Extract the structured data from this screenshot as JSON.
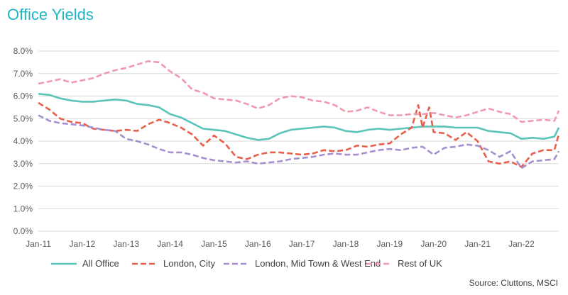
{
  "chart_data": {
    "type": "line",
    "title": "Office Yields",
    "source": "Source: Cluttons, MSCI",
    "xlabel": "",
    "ylabel": "",
    "x_tick_labels": [
      "Jan-11",
      "Jan-12",
      "Jan-13",
      "Jan-14",
      "Jan-15",
      "Jan-16",
      "Jan-17",
      "Jan-18",
      "Jan-19",
      "Jan-20",
      "Jan-21",
      "Jan-22"
    ],
    "y_tick_labels": [
      "0.0%",
      "1.0%",
      "2.0%",
      "3.0%",
      "4.0%",
      "5.0%",
      "6.0%",
      "7.0%",
      "8.0%"
    ],
    "ylim": [
      0,
      8
    ],
    "grid": "horizontal",
    "legend_position": "bottom",
    "series": [
      {
        "name": "All Office",
        "color": "#5bc4b8",
        "dash": "solid",
        "x": [
          2011.0,
          2011.25,
          2011.5,
          2011.75,
          2012.0,
          2012.25,
          2012.5,
          2012.75,
          2013.0,
          2013.25,
          2013.5,
          2013.75,
          2014.0,
          2014.25,
          2014.5,
          2014.75,
          2015.0,
          2015.25,
          2015.5,
          2015.75,
          2016.0,
          2016.25,
          2016.5,
          2016.75,
          2017.0,
          2017.25,
          2017.5,
          2017.75,
          2018.0,
          2018.25,
          2018.5,
          2018.75,
          2019.0,
          2019.25,
          2019.5,
          2019.75,
          2020.0,
          2020.25,
          2020.5,
          2020.75,
          2021.0,
          2021.25,
          2021.5,
          2021.75,
          2022.0,
          2022.25,
          2022.5,
          2022.75,
          2022.85
        ],
        "values": [
          6.1,
          6.05,
          5.9,
          5.8,
          5.75,
          5.75,
          5.8,
          5.85,
          5.8,
          5.65,
          5.6,
          5.5,
          5.2,
          5.05,
          4.8,
          4.55,
          4.5,
          4.45,
          4.3,
          4.15,
          4.05,
          4.1,
          4.35,
          4.5,
          4.55,
          4.6,
          4.65,
          4.6,
          4.45,
          4.4,
          4.5,
          4.55,
          4.5,
          4.55,
          4.6,
          4.65,
          4.65,
          4.65,
          4.6,
          4.6,
          4.6,
          4.45,
          4.4,
          4.35,
          4.1,
          4.15,
          4.1,
          4.2,
          4.6
        ]
      },
      {
        "name": "London, City",
        "color": "#e8604c",
        "dash": "long",
        "x": [
          2011.0,
          2011.25,
          2011.5,
          2011.75,
          2012.0,
          2012.25,
          2012.5,
          2012.75,
          2013.0,
          2013.25,
          2013.5,
          2013.75,
          2014.0,
          2014.25,
          2014.5,
          2014.75,
          2015.0,
          2015.25,
          2015.5,
          2015.75,
          2016.0,
          2016.25,
          2016.5,
          2016.75,
          2017.0,
          2017.25,
          2017.5,
          2017.75,
          2018.0,
          2018.25,
          2018.5,
          2018.75,
          2019.0,
          2019.25,
          2019.5,
          2019.65,
          2019.75,
          2019.9,
          2020.0,
          2020.25,
          2020.5,
          2020.75,
          2021.0,
          2021.25,
          2021.5,
          2021.75,
          2022.0,
          2022.25,
          2022.5,
          2022.75,
          2022.85
        ],
        "values": [
          5.7,
          5.4,
          5.0,
          4.85,
          4.8,
          4.55,
          4.5,
          4.45,
          4.5,
          4.45,
          4.75,
          4.95,
          4.8,
          4.6,
          4.3,
          3.8,
          4.25,
          3.9,
          3.3,
          3.2,
          3.4,
          3.5,
          3.5,
          3.45,
          3.4,
          3.45,
          3.6,
          3.55,
          3.6,
          3.8,
          3.75,
          3.85,
          3.9,
          4.3,
          4.6,
          5.6,
          4.6,
          5.5,
          4.4,
          4.35,
          4.05,
          4.4,
          4.0,
          3.1,
          3.0,
          3.1,
          2.85,
          3.45,
          3.6,
          3.6,
          4.3
        ]
      },
      {
        "name": "London, Mid Town & West End",
        "color": "#a58fce",
        "dash": "long",
        "x": [
          2011.0,
          2011.25,
          2011.5,
          2011.75,
          2012.0,
          2012.25,
          2012.5,
          2012.75,
          2013.0,
          2013.25,
          2013.5,
          2013.75,
          2014.0,
          2014.25,
          2014.5,
          2014.75,
          2015.0,
          2015.25,
          2015.5,
          2015.75,
          2016.0,
          2016.25,
          2016.5,
          2016.75,
          2017.0,
          2017.25,
          2017.5,
          2017.75,
          2018.0,
          2018.25,
          2018.5,
          2018.75,
          2019.0,
          2019.25,
          2019.5,
          2019.75,
          2020.0,
          2020.25,
          2020.5,
          2020.75,
          2021.0,
          2021.25,
          2021.5,
          2021.75,
          2022.0,
          2022.25,
          2022.5,
          2022.75,
          2022.85
        ],
        "values": [
          5.15,
          4.9,
          4.8,
          4.75,
          4.7,
          4.6,
          4.5,
          4.45,
          4.1,
          4.0,
          3.85,
          3.65,
          3.5,
          3.5,
          3.4,
          3.25,
          3.15,
          3.1,
          3.05,
          3.1,
          3.0,
          3.05,
          3.1,
          3.2,
          3.25,
          3.3,
          3.4,
          3.45,
          3.4,
          3.4,
          3.5,
          3.6,
          3.65,
          3.6,
          3.7,
          3.75,
          3.4,
          3.7,
          3.75,
          3.85,
          3.8,
          3.6,
          3.3,
          3.55,
          2.8,
          3.1,
          3.15,
          3.2,
          3.55
        ]
      },
      {
        "name": "Rest of UK",
        "color": "#ef9aaf",
        "dash": "long",
        "x": [
          2011.0,
          2011.25,
          2011.5,
          2011.75,
          2012.0,
          2012.25,
          2012.5,
          2012.75,
          2013.0,
          2013.25,
          2013.5,
          2013.75,
          2014.0,
          2014.25,
          2014.5,
          2014.75,
          2015.0,
          2015.25,
          2015.5,
          2015.75,
          2016.0,
          2016.25,
          2016.5,
          2016.75,
          2017.0,
          2017.25,
          2017.5,
          2017.75,
          2018.0,
          2018.25,
          2018.5,
          2018.75,
          2019.0,
          2019.25,
          2019.5,
          2019.75,
          2020.0,
          2020.25,
          2020.5,
          2020.75,
          2021.0,
          2021.25,
          2021.5,
          2021.75,
          2022.0,
          2022.25,
          2022.5,
          2022.75,
          2022.85
        ],
        "values": [
          6.55,
          6.65,
          6.75,
          6.6,
          6.7,
          6.8,
          7.0,
          7.15,
          7.25,
          7.4,
          7.55,
          7.5,
          7.1,
          6.8,
          6.3,
          6.15,
          5.9,
          5.85,
          5.8,
          5.65,
          5.45,
          5.6,
          5.9,
          6.0,
          5.95,
          5.8,
          5.75,
          5.6,
          5.3,
          5.35,
          5.5,
          5.3,
          5.15,
          5.15,
          5.2,
          5.2,
          5.25,
          5.15,
          5.05,
          5.15,
          5.3,
          5.45,
          5.3,
          5.2,
          4.85,
          4.9,
          4.95,
          4.9,
          5.35
        ]
      }
    ]
  }
}
